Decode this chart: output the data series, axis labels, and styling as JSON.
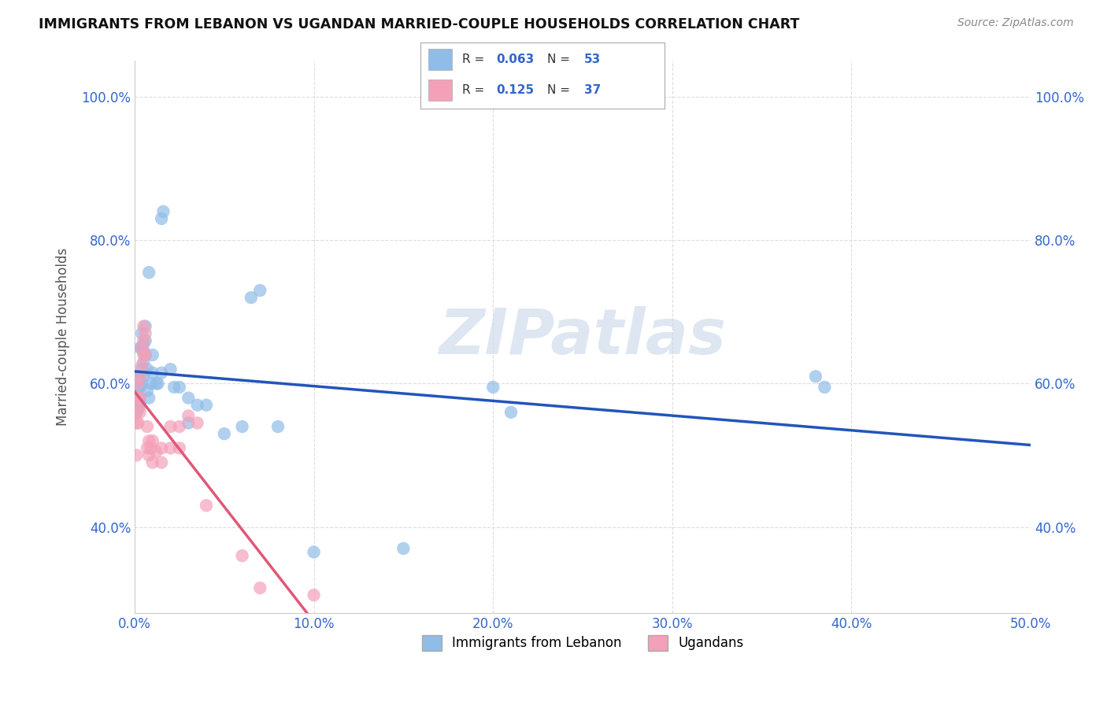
{
  "title": "IMMIGRANTS FROM LEBANON VS UGANDAN MARRIED-COUPLE HOUSEHOLDS CORRELATION CHART",
  "source": "Source: ZipAtlas.com",
  "ylabel": "Married-couple Households",
  "xlim": [
    0.0,
    0.5
  ],
  "ylim": [
    0.28,
    1.05
  ],
  "xticks": [
    0.0,
    0.1,
    0.2,
    0.3,
    0.4,
    0.5
  ],
  "yticks": [
    0.4,
    0.6,
    0.8,
    1.0
  ],
  "xticklabels": [
    "0.0%",
    "10.0%",
    "20.0%",
    "30.0%",
    "40.0%",
    "50.0%"
  ],
  "yticklabels": [
    "40.0%",
    "60.0%",
    "80.0%",
    "100.0%"
  ],
  "legend_blue_r": "0.063",
  "legend_blue_n": "53",
  "legend_pink_r": "0.125",
  "legend_pink_n": "37",
  "blue_color": "#90bce8",
  "pink_color": "#f4a0b8",
  "trend_blue_color": "#2255bb",
  "trend_pink_color": "#e05878",
  "watermark": "ZIPatlas",
  "blue_scatter": [
    [
      0.001,
      0.58
    ],
    [
      0.001,
      0.59
    ],
    [
      0.001,
      0.56
    ],
    [
      0.002,
      0.575
    ],
    [
      0.002,
      0.595
    ],
    [
      0.002,
      0.61
    ],
    [
      0.002,
      0.565
    ],
    [
      0.003,
      0.65
    ],
    [
      0.003,
      0.58
    ],
    [
      0.003,
      0.61
    ],
    [
      0.003,
      0.57
    ],
    [
      0.003,
      0.595
    ],
    [
      0.004,
      0.62
    ],
    [
      0.004,
      0.65
    ],
    [
      0.004,
      0.67
    ],
    [
      0.004,
      0.6
    ],
    [
      0.005,
      0.63
    ],
    [
      0.005,
      0.655
    ],
    [
      0.005,
      0.61
    ],
    [
      0.005,
      0.645
    ],
    [
      0.006,
      0.66
    ],
    [
      0.006,
      0.64
    ],
    [
      0.006,
      0.68
    ],
    [
      0.007,
      0.59
    ],
    [
      0.007,
      0.62
    ],
    [
      0.008,
      0.58
    ],
    [
      0.008,
      0.755
    ],
    [
      0.009,
      0.6
    ],
    [
      0.01,
      0.64
    ],
    [
      0.01,
      0.615
    ],
    [
      0.012,
      0.6
    ],
    [
      0.013,
      0.6
    ],
    [
      0.015,
      0.615
    ],
    [
      0.015,
      0.83
    ],
    [
      0.016,
      0.84
    ],
    [
      0.02,
      0.62
    ],
    [
      0.022,
      0.595
    ],
    [
      0.025,
      0.595
    ],
    [
      0.03,
      0.545
    ],
    [
      0.03,
      0.58
    ],
    [
      0.035,
      0.57
    ],
    [
      0.04,
      0.57
    ],
    [
      0.05,
      0.53
    ],
    [
      0.06,
      0.54
    ],
    [
      0.065,
      0.72
    ],
    [
      0.07,
      0.73
    ],
    [
      0.08,
      0.54
    ],
    [
      0.1,
      0.365
    ],
    [
      0.15,
      0.37
    ],
    [
      0.2,
      0.595
    ],
    [
      0.21,
      0.56
    ],
    [
      0.38,
      0.61
    ],
    [
      0.385,
      0.595
    ]
  ],
  "pink_scatter": [
    [
      0.001,
      0.56
    ],
    [
      0.001,
      0.545
    ],
    [
      0.001,
      0.58
    ],
    [
      0.001,
      0.5
    ],
    [
      0.002,
      0.6
    ],
    [
      0.002,
      0.57
    ],
    [
      0.002,
      0.545
    ],
    [
      0.003,
      0.61
    ],
    [
      0.003,
      0.58
    ],
    [
      0.003,
      0.56
    ],
    [
      0.004,
      0.65
    ],
    [
      0.004,
      0.625
    ],
    [
      0.005,
      0.66
    ],
    [
      0.005,
      0.68
    ],
    [
      0.005,
      0.64
    ],
    [
      0.006,
      0.67
    ],
    [
      0.006,
      0.64
    ],
    [
      0.007,
      0.51
    ],
    [
      0.007,
      0.54
    ],
    [
      0.008,
      0.5
    ],
    [
      0.008,
      0.52
    ],
    [
      0.009,
      0.51
    ],
    [
      0.01,
      0.49
    ],
    [
      0.01,
      0.52
    ],
    [
      0.012,
      0.505
    ],
    [
      0.015,
      0.51
    ],
    [
      0.015,
      0.49
    ],
    [
      0.02,
      0.54
    ],
    [
      0.02,
      0.51
    ],
    [
      0.025,
      0.54
    ],
    [
      0.025,
      0.51
    ],
    [
      0.03,
      0.555
    ],
    [
      0.035,
      0.545
    ],
    [
      0.04,
      0.43
    ],
    [
      0.06,
      0.36
    ],
    [
      0.07,
      0.315
    ],
    [
      0.1,
      0.305
    ]
  ]
}
